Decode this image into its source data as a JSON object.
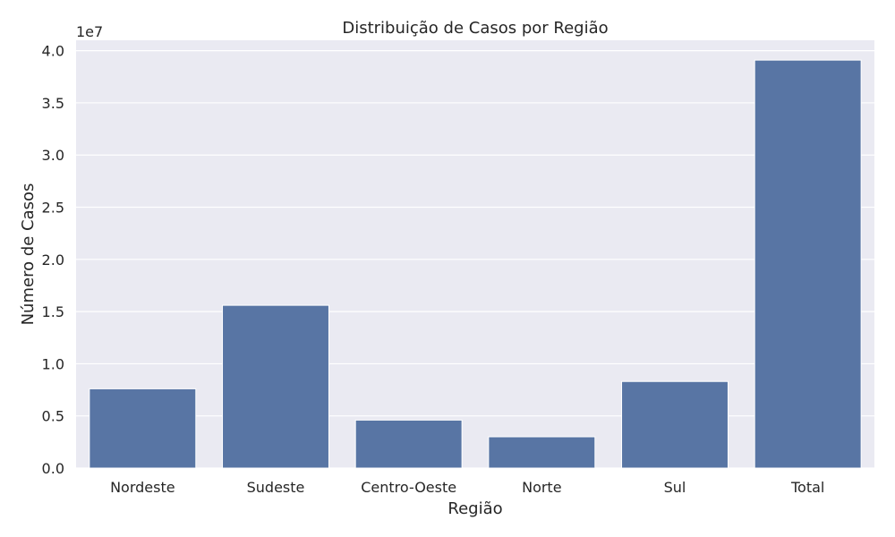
{
  "chart_data": {
    "type": "bar",
    "title": "Distribuição de Casos por Região",
    "xlabel": "Região",
    "ylabel": "Número de Casos",
    "y_offset_label": "1e7",
    "categories": [
      "Nordeste",
      "Sudeste",
      "Centro-Oeste",
      "Norte",
      "Sul",
      "Total"
    ],
    "values": [
      7600000,
      15600000,
      4600000,
      3000000,
      8300000,
      39100000
    ],
    "ylim": [
      0,
      41000000
    ],
    "yticks": [
      0,
      5000000,
      10000000,
      15000000,
      20000000,
      25000000,
      30000000,
      35000000,
      40000000
    ],
    "ytick_labels": [
      "0.0",
      "0.5",
      "1.0",
      "1.5",
      "2.0",
      "2.5",
      "3.0",
      "3.5",
      "4.0"
    ],
    "grid": true,
    "colors": {
      "bar": "#5875a4",
      "plot_background": "#eaeaf2",
      "grid": "#ffffff"
    }
  }
}
